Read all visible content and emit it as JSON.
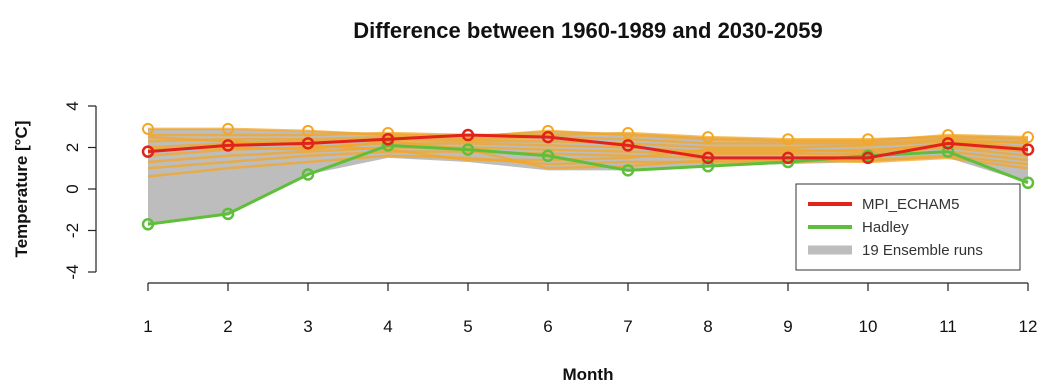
{
  "chart_data": {
    "type": "line",
    "title": "Difference between 1960-1989 and 2030-2059",
    "xlabel": "Month",
    "ylabel": "Temperature [°C]",
    "x": [
      1,
      2,
      3,
      4,
      5,
      6,
      7,
      8,
      9,
      10,
      11,
      12
    ],
    "xlim": [
      1,
      12
    ],
    "ylim": [
      -4,
      4
    ],
    "yticks": [
      -4,
      -2,
      0,
      2,
      4
    ],
    "grid": false,
    "legend_position": "bottom-right",
    "series": [
      {
        "name": "MPI_ECHAM5",
        "color": "#e2231a",
        "values": [
          1.8,
          2.1,
          2.2,
          2.4,
          2.6,
          2.5,
          2.1,
          1.5,
          1.5,
          1.5,
          2.2,
          1.9
        ]
      },
      {
        "name": "Hadley",
        "color": "#5fbf3a",
        "values": [
          -1.7,
          -1.2,
          0.7,
          2.1,
          1.9,
          1.6,
          0.9,
          1.1,
          1.3,
          1.6,
          1.8,
          0.3
        ]
      }
    ],
    "ensemble": {
      "name": "19 Ensemble runs",
      "band_color": "#bdbdbd",
      "line_color": "#f5a623",
      "min": [
        -1.7,
        -1.2,
        0.7,
        1.5,
        1.3,
        0.9,
        0.9,
        1.1,
        1.2,
        1.3,
        1.5,
        0.3
      ],
      "max": [
        2.9,
        2.9,
        2.8,
        2.7,
        2.6,
        2.8,
        2.7,
        2.5,
        2.4,
        2.4,
        2.6,
        2.5
      ],
      "runs": [
        [
          2.9,
          2.9,
          2.8,
          2.6,
          2.5,
          2.8,
          2.6,
          2.4,
          2.3,
          2.3,
          2.6,
          2.5
        ],
        [
          2.6,
          2.6,
          2.6,
          2.7,
          2.6,
          2.6,
          2.7,
          2.5,
          2.4,
          2.4,
          2.5,
          2.4
        ],
        [
          2.3,
          2.4,
          2.4,
          2.5,
          2.4,
          2.5,
          2.4,
          2.2,
          2.2,
          2.2,
          2.4,
          2.2
        ],
        [
          2.0,
          2.2,
          2.3,
          2.4,
          2.3,
          2.3,
          2.2,
          2.0,
          2.0,
          2.1,
          2.3,
          2.0
        ],
        [
          1.6,
          1.9,
          2.0,
          2.2,
          2.2,
          2.1,
          2.0,
          1.8,
          1.8,
          1.9,
          2.1,
          1.8
        ],
        [
          1.3,
          1.6,
          1.8,
          2.0,
          2.0,
          1.9,
          1.8,
          1.7,
          1.7,
          1.7,
          2.0,
          1.6
        ],
        [
          1.0,
          1.3,
          1.6,
          1.8,
          1.8,
          1.7,
          1.6,
          1.5,
          1.5,
          1.6,
          1.8,
          1.4
        ],
        [
          0.6,
          1.0,
          1.3,
          1.6,
          1.5,
          1.2,
          1.3,
          1.3,
          1.3,
          1.4,
          1.6,
          1.2
        ],
        [
          1.9,
          2.0,
          1.9,
          2.3,
          1.9,
          1.0,
          1.1,
          1.4,
          1.4,
          1.3,
          1.5,
          1.0
        ],
        [
          2.5,
          2.3,
          2.1,
          1.9,
          1.4,
          1.4,
          1.5,
          1.9,
          1.9,
          1.8,
          2.2,
          2.3
        ]
      ]
    }
  }
}
